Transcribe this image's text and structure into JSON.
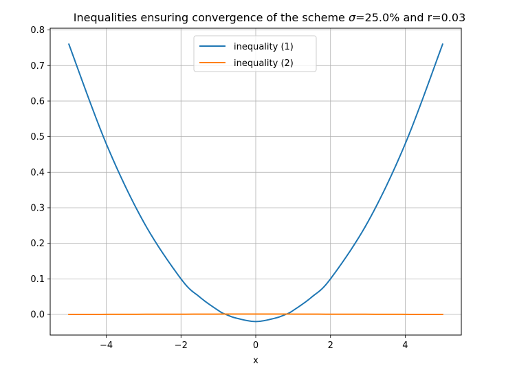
{
  "chart_data": {
    "type": "line",
    "title_parts": {
      "prefix": "Inequalities ensuring convergence of the scheme ",
      "sigma": "σ",
      "suffix": "=25.0% and r=0.03"
    },
    "xlabel": "x",
    "ylabel": "",
    "xlim": [
      -5.5,
      5.5
    ],
    "ylim": [
      -0.058,
      0.805
    ],
    "xticks": [
      -4,
      -2,
      0,
      2,
      4
    ],
    "xtick_labels": [
      "−4",
      "−2",
      "0",
      "2",
      "4"
    ],
    "yticks": [
      0.0,
      0.1,
      0.2,
      0.3,
      0.4,
      0.5,
      0.6,
      0.7,
      0.8
    ],
    "ytick_labels": [
      "0.0",
      "0.1",
      "0.2",
      "0.3",
      "0.4",
      "0.5",
      "0.6",
      "0.7",
      "0.8"
    ],
    "grid": true,
    "legend_position": "top-center",
    "series": [
      {
        "name": "inequality (1)",
        "color": "#1f77b4",
        "x": [
          -5,
          -4,
          -3,
          -2,
          -1.5,
          -1,
          -0.8,
          -0.5,
          0,
          0.5,
          0.8,
          1,
          1.5,
          2,
          3,
          4,
          5
        ],
        "y": [
          0.76,
          0.48,
          0.26,
          0.1,
          0.049,
          0.011,
          0.0,
          -0.011,
          -0.02,
          -0.011,
          0.0,
          0.011,
          0.049,
          0.1,
          0.26,
          0.48,
          0.76
        ]
      },
      {
        "name": "inequality (2)",
        "color": "#ff7f0e",
        "x": [
          -5,
          -2.5,
          0,
          2.5,
          5
        ],
        "y": [
          0.0,
          0.0005,
          0.001,
          0.0005,
          0.0
        ]
      }
    ]
  }
}
